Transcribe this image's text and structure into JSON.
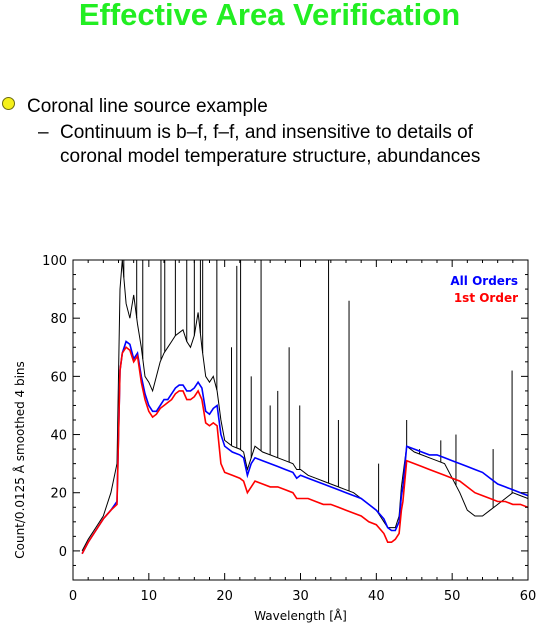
{
  "slide": {
    "title": "Effective Area Verification",
    "bullet": "Coronal line source example",
    "sub_dash": "–",
    "sub_line1": "Continuum is b–f, f–f, and insensitive to details of",
    "sub_line2": "coronal model temperature structure, abundances"
  },
  "colors": {
    "title": "#22ee22",
    "all_orders": "#0000ff",
    "first_order": "#ff0000",
    "data": "#000000"
  },
  "chart_data": {
    "type": "line",
    "title": "",
    "xlabel": "Wavelength [Å]",
    "ylabel": "Count/0.0125 Å smoothed 4 bins",
    "xlim": [
      0,
      60
    ],
    "ylim": [
      -10,
      100
    ],
    "xticks": [
      0,
      10,
      20,
      30,
      40,
      50,
      60
    ],
    "yticks": [
      0,
      20,
      40,
      60,
      80,
      100
    ],
    "legend_position": "top-right",
    "series": [
      {
        "name": "All Orders",
        "color": "#0000ff",
        "x": [
          1.2,
          2,
          3,
          4,
          5,
          5.8,
          6.2,
          6.5,
          7,
          7.5,
          8,
          8.5,
          9,
          9.5,
          10,
          10.5,
          11,
          11.5,
          12,
          12.5,
          13,
          13.5,
          14,
          14.5,
          15,
          15.5,
          16,
          16.5,
          17,
          17.5,
          18,
          18.5,
          19,
          19.5,
          20,
          21,
          22,
          22.5,
          23,
          23.5,
          24,
          25,
          26,
          27,
          28,
          29,
          29.5,
          30,
          31,
          32,
          33,
          34,
          35,
          36,
          37,
          38,
          39,
          40,
          41,
          41.5,
          42,
          42.5,
          43,
          43.3,
          43.5,
          44,
          45,
          46,
          47,
          48,
          49,
          50,
          51,
          52,
          53,
          54,
          55,
          56,
          57,
          58,
          59,
          60
        ],
        "y": [
          -1,
          3,
          7,
          11,
          14,
          17,
          62,
          68,
          72,
          71,
          66,
          68,
          60,
          54,
          50,
          48,
          48,
          50,
          52,
          52,
          54,
          56,
          57,
          57,
          55,
          55,
          56,
          58,
          56,
          48,
          47,
          49,
          50,
          40,
          36,
          34,
          33,
          32,
          26,
          30,
          32,
          31,
          30,
          29,
          28,
          27,
          25,
          26,
          25,
          24,
          23,
          22,
          21,
          20,
          19,
          18,
          16,
          14,
          11,
          8,
          7,
          7,
          10,
          19,
          22,
          36,
          35,
          34,
          33,
          33,
          32,
          31,
          30,
          29,
          28,
          27,
          25,
          23,
          22,
          21,
          20,
          19
        ]
      },
      {
        "name": "1st Order",
        "color": "#ff0000",
        "x": [
          1.2,
          2,
          3,
          4,
          5,
          5.8,
          6.2,
          6.5,
          7,
          7.5,
          8,
          8.5,
          9,
          9.5,
          10,
          10.5,
          11,
          11.5,
          12,
          12.5,
          13,
          13.5,
          14,
          14.5,
          15,
          15.5,
          16,
          16.5,
          17,
          17.5,
          18,
          18.5,
          19,
          19.5,
          20,
          21,
          22,
          22.5,
          23,
          23.5,
          24,
          25,
          26,
          27,
          28,
          29,
          29.5,
          30,
          31,
          32,
          33,
          34,
          35,
          36,
          37,
          38,
          39,
          40,
          41,
          41.5,
          42,
          42.5,
          43,
          43.3,
          43.5,
          44,
          45,
          46,
          47,
          48,
          49,
          50,
          51,
          52,
          53,
          54,
          55,
          56,
          57,
          58,
          59,
          60
        ],
        "y": [
          -1,
          3,
          7,
          11,
          14,
          16,
          62,
          68,
          70,
          69,
          65,
          67,
          58,
          52,
          48,
          46,
          47,
          49,
          50,
          51,
          52,
          54,
          55,
          55,
          52,
          52,
          53,
          55,
          52,
          44,
          43,
          44,
          43,
          30,
          27,
          26,
          25,
          24,
          20,
          22,
          24,
          23,
          22,
          22,
          21,
          20,
          18,
          18,
          18,
          17,
          16,
          16,
          15,
          14,
          13,
          12,
          10,
          9,
          6,
          3,
          3,
          4,
          6,
          14,
          17,
          31,
          30,
          29,
          28,
          27,
          26,
          25,
          24,
          22,
          20,
          19,
          18,
          17,
          17,
          16,
          16,
          15
        ]
      },
      {
        "name": "",
        "color": "#000000",
        "x": [
          1.2,
          2,
          3,
          4,
          5,
          5.8,
          6.2,
          6.5,
          7,
          7.5,
          8,
          8.5,
          9,
          9.5,
          10,
          10.5,
          11,
          11.5,
          12,
          12.5,
          13,
          13.5,
          14,
          14.5,
          15,
          15.5,
          16,
          16.5,
          17,
          17.5,
          18,
          18.5,
          19,
          19.5,
          20,
          21,
          22,
          22.5,
          23,
          23.5,
          24,
          25,
          26,
          27,
          28,
          29,
          29.5,
          30,
          31,
          32,
          33,
          34,
          35,
          36,
          37,
          38,
          39,
          40,
          41,
          41.5,
          42,
          42.5,
          43,
          43.3,
          43.5,
          44,
          45,
          46,
          47,
          48,
          49,
          50,
          51,
          52,
          53,
          54,
          55,
          56,
          57,
          58,
          59,
          60
        ],
        "y": [
          0,
          4,
          8,
          12,
          20,
          30,
          90,
          100,
          85,
          80,
          88,
          78,
          70,
          60,
          58,
          55,
          60,
          65,
          68,
          70,
          72,
          74,
          75,
          76,
          72,
          70,
          74,
          82,
          70,
          60,
          58,
          60,
          55,
          45,
          38,
          36,
          35,
          34,
          28,
          32,
          36,
          34,
          33,
          32,
          31,
          30,
          28,
          28,
          26,
          25,
          24,
          23,
          22,
          21,
          20,
          18,
          16,
          14,
          10,
          8,
          8,
          8,
          12,
          22,
          26,
          36,
          34,
          33,
          32,
          31,
          30,
          25,
          20,
          14,
          12,
          12,
          14,
          16,
          18,
          20,
          19,
          18
        ]
      }
    ],
    "emission_lines": [
      {
        "x": 6.7,
        "peak": 100
      },
      {
        "x": 8.4,
        "peak": 100
      },
      {
        "x": 9.2,
        "peak": 100
      },
      {
        "x": 11.6,
        "peak": 100
      },
      {
        "x": 12.1,
        "peak": 100
      },
      {
        "x": 13.5,
        "peak": 100
      },
      {
        "x": 15.0,
        "peak": 100
      },
      {
        "x": 16.0,
        "peak": 100
      },
      {
        "x": 16.8,
        "peak": 100
      },
      {
        "x": 17.1,
        "peak": 100
      },
      {
        "x": 18.97,
        "peak": 100
      },
      {
        "x": 20.9,
        "peak": 70
      },
      {
        "x": 21.6,
        "peak": 98
      },
      {
        "x": 22.1,
        "peak": 100
      },
      {
        "x": 23.5,
        "peak": 60
      },
      {
        "x": 24.8,
        "peak": 100
      },
      {
        "x": 26.0,
        "peak": 50
      },
      {
        "x": 27.0,
        "peak": 55
      },
      {
        "x": 28.5,
        "peak": 70
      },
      {
        "x": 29.9,
        "peak": 50
      },
      {
        "x": 33.7,
        "peak": 100
      },
      {
        "x": 35.0,
        "peak": 45
      },
      {
        "x": 36.4,
        "peak": 86
      },
      {
        "x": 40.3,
        "peak": 30
      },
      {
        "x": 44.0,
        "peak": 45
      },
      {
        "x": 45.7,
        "peak": 35
      },
      {
        "x": 48.5,
        "peak": 38
      },
      {
        "x": 50.5,
        "peak": 40
      },
      {
        "x": 55.4,
        "peak": 35
      },
      {
        "x": 57.9,
        "peak": 62
      }
    ]
  }
}
